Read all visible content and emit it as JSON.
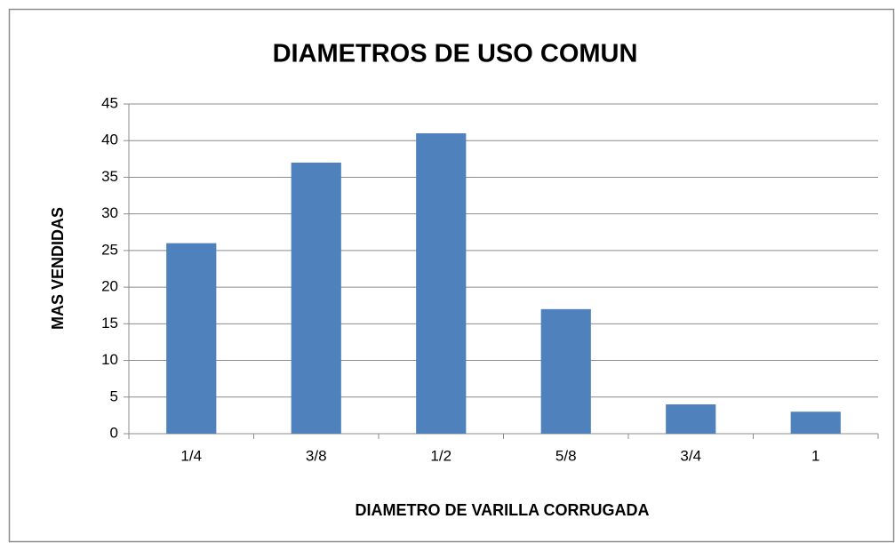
{
  "chart_data": {
    "type": "bar",
    "title": "DIAMETROS DE USO COMUN",
    "x_label": "DIAMETRO DE VARILLA CORRUGADA",
    "y_label": "MAS VENDIDAS",
    "categories": [
      "1/4",
      "3/8",
      "1/2",
      "5/8",
      "3/4",
      "1"
    ],
    "values": [
      26,
      37,
      41,
      17,
      4,
      3
    ],
    "color": "#4f81bd",
    "ylim": [
      0,
      45
    ],
    "yticks": [
      0,
      5,
      10,
      15,
      20,
      25,
      30,
      35,
      40,
      45
    ],
    "grid": true
  }
}
